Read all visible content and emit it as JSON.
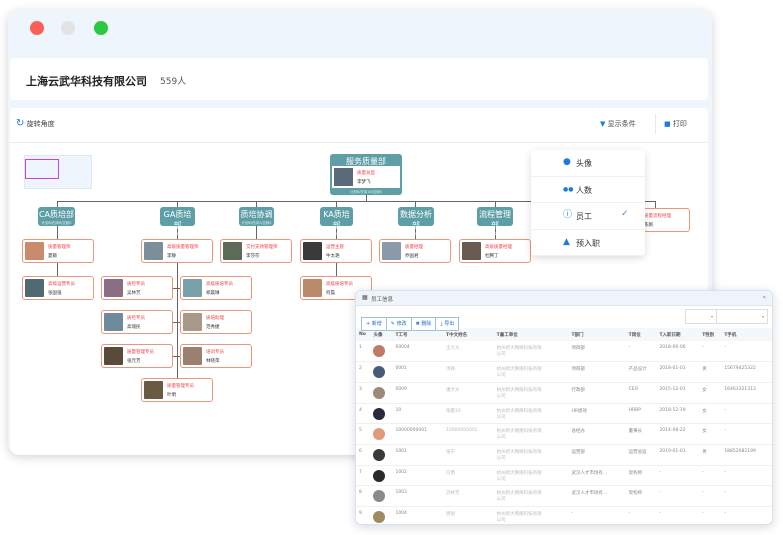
{
  "window": {
    "dots": [
      "#f95f57",
      "#e3e3e3",
      "#2ac940"
    ]
  },
  "header": {
    "company": "上海云武华科技有限公司",
    "count": "559人"
  },
  "toolbar": {
    "rotate": "旋转角度",
    "filter": "显示条件",
    "print": "打印"
  },
  "org": {
    "root": {
      "dept": "服务质量部",
      "sub": "计划6/在岗18/空缺0",
      "role": "质量总监",
      "name": "李梦飞"
    },
    "depts": [
      {
        "name": "CA质培部",
        "sub": "计划6/在岗6/空缺0"
      },
      {
        "name": "GA质培部",
        "sub": "计划6/在岗8/空缺0"
      },
      {
        "name": "质培协调",
        "sub": "计划6/在岗1/空缺0"
      },
      {
        "name": "KA质培部",
        "sub": "计划6/在岗2/空缺0"
      },
      {
        "name": "数据分析部",
        "sub": "计划6/在岗1/空缺0"
      },
      {
        "name": "流程管理部",
        "sub": "计划6/在岗1/空缺0"
      }
    ],
    "people": [
      {
        "role": "质量管理师",
        "name": "夏颖"
      },
      {
        "role": "高级质量管理师",
        "name": "李静"
      },
      {
        "role": "交付支持管理师",
        "name": "李莎莎"
      },
      {
        "role": "运营主管",
        "name": "牛太艳"
      },
      {
        "role": "质量经理",
        "name": "乔国君"
      },
      {
        "role": "高级质量经理",
        "name": "杜腾丁"
      },
      {
        "role": "质量流程经理",
        "name": "陈刚"
      },
      {
        "role": "高级运营专员",
        "name": "张国强"
      },
      {
        "role": "质检专员",
        "name": "吴林芳"
      },
      {
        "role": "高级质培专员",
        "name": "郑晨琳"
      },
      {
        "role": "高级质培专员",
        "name": "何磊"
      },
      {
        "role": "质检专员",
        "name": "高瑞民"
      },
      {
        "role": "质培助理",
        "name": "范秀捷"
      },
      {
        "role": "质量管理专员",
        "name": "张元芳"
      },
      {
        "role": "培训专员",
        "name": "林晓萍"
      },
      {
        "role": "质量管理专员",
        "name": "叶明"
      }
    ]
  },
  "dropdown": {
    "items": [
      {
        "label": "头像",
        "icon": "user-icon",
        "checked": false
      },
      {
        "label": "人数",
        "icon": "users-icon",
        "checked": false
      },
      {
        "label": "员工",
        "icon": "info-icon",
        "checked": true
      },
      {
        "label": "预入职",
        "icon": "stamp-icon",
        "checked": false
      }
    ]
  },
  "table": {
    "title": "员工信息",
    "buttons": [
      "新增",
      "修改",
      "删除",
      "导出"
    ],
    "headers": [
      "No",
      "头像",
      "工号",
      "中文姓名",
      "雇工单位",
      "部门",
      "岗位",
      "入职日期",
      "性别",
      "手机"
    ],
    "rows": [
      [
        "1",
        "",
        "00004",
        "王大大",
        "杭州新大网络科技有限公司",
        "项目部",
        "-",
        "2018-06-06",
        "-",
        "-"
      ],
      [
        "2",
        "",
        "0001",
        "汤钱",
        "杭州新大网络科技有限公司",
        "项目部",
        "产品设计",
        "2018-01-01",
        "男",
        "15679425322"
      ],
      [
        "3",
        "",
        "0009",
        "潘大大",
        "杭州新大网络科技有限公司",
        "行政部",
        "CEO",
        "2015-12-01",
        "女",
        "16461321313"
      ],
      [
        "4",
        "",
        "10",
        "张量10",
        "杭州新大网络科技有限公司",
        "HR绩效",
        "HRBP",
        "2018-12-19",
        "女",
        "-"
      ],
      [
        "5",
        "",
        "10000000001",
        "10000000001",
        "杭州新大网络科技有限公司",
        "总经办",
        "董事长",
        "2014-08-22",
        "女",
        "-"
      ],
      [
        "6",
        "",
        "1001",
        "张宁",
        "杭州新大网络科技有限公司",
        "运营部",
        "运营总监",
        "2019-01-01",
        "男",
        "18852082199"
      ],
      [
        "7",
        "",
        "1002",
        "冯勇",
        "杭州新大网络科技有限公司",
        "武汉人才市场有…",
        "架构师",
        "-",
        "-",
        "-"
      ],
      [
        "8",
        "",
        "1003",
        "許林芳",
        "杭州新大网络科技有限公司",
        "武汉人才市场有…",
        "架构师",
        "-",
        "-",
        "-"
      ],
      [
        "9",
        "",
        "1004",
        "周锐",
        "杭州新大网络科技有限公司",
        "-",
        "-",
        "-",
        "-",
        "-"
      ]
    ]
  },
  "colors": {
    "accent": "#1a7be0",
    "dept": "#5e9ea6",
    "card_border": "#e9967a",
    "role": "#f0404a"
  }
}
